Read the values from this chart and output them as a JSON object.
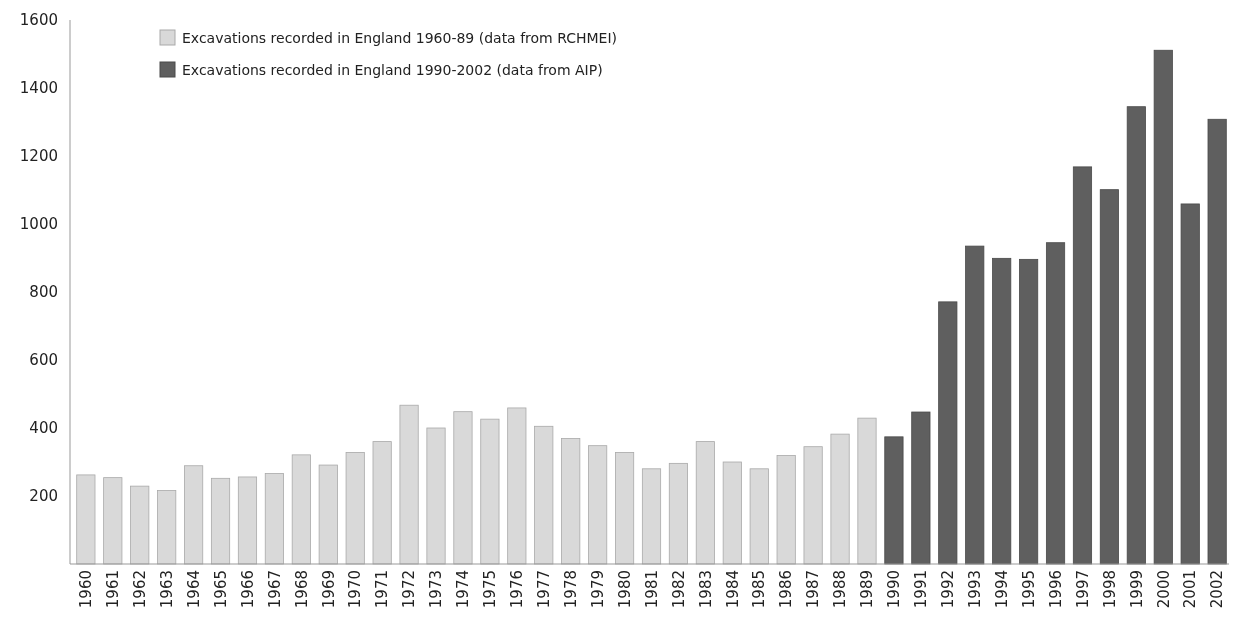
{
  "chart_data": {
    "type": "bar",
    "categories": [
      "1960",
      "1961",
      "1962",
      "1963",
      "1964",
      "1965",
      "1966",
      "1967",
      "1968",
      "1969",
      "1970",
      "1971",
      "1972",
      "1973",
      "1974",
      "1975",
      "1976",
      "1977",
      "1978",
      "1979",
      "1980",
      "1981",
      "1982",
      "1983",
      "1984",
      "1985",
      "1986",
      "1987",
      "1988",
      "1989",
      "1990",
      "1991",
      "1992",
      "1993",
      "1994",
      "1995",
      "1996",
      "1997",
      "1998",
      "1999",
      "2000",
      "2001",
      "2002"
    ],
    "series": [
      {
        "name": "Excavations recorded in England 1960-89 (data from RCHMEI)",
        "color": "#d9d9d9",
        "values": [
          262,
          254,
          229,
          216,
          289,
          252,
          256,
          266,
          321,
          291,
          328,
          360,
          467,
          400,
          448,
          426,
          459,
          405,
          369,
          348,
          328,
          280,
          296,
          360,
          300,
          280,
          319,
          345,
          382,
          429,
          null,
          null,
          null,
          null,
          null,
          null,
          null,
          null,
          null,
          null,
          null,
          null,
          null
        ]
      },
      {
        "name": "Excavations recorded in England 1990-2002 (data from AIP)",
        "color": "#5f5f5f",
        "values": [
          null,
          null,
          null,
          null,
          null,
          null,
          null,
          null,
          null,
          null,
          null,
          null,
          null,
          null,
          null,
          null,
          null,
          null,
          null,
          null,
          null,
          null,
          null,
          null,
          null,
          null,
          null,
          null,
          null,
          null,
          374,
          447,
          771,
          935,
          899,
          896,
          945,
          1168,
          1101,
          1345,
          1511,
          1059,
          1308
        ]
      }
    ],
    "ylim": [
      0,
      1600
    ],
    "yticks": [
      200,
      400,
      600,
      800,
      1000,
      1200,
      1400,
      1600
    ],
    "grid": false,
    "legend": "top left"
  }
}
